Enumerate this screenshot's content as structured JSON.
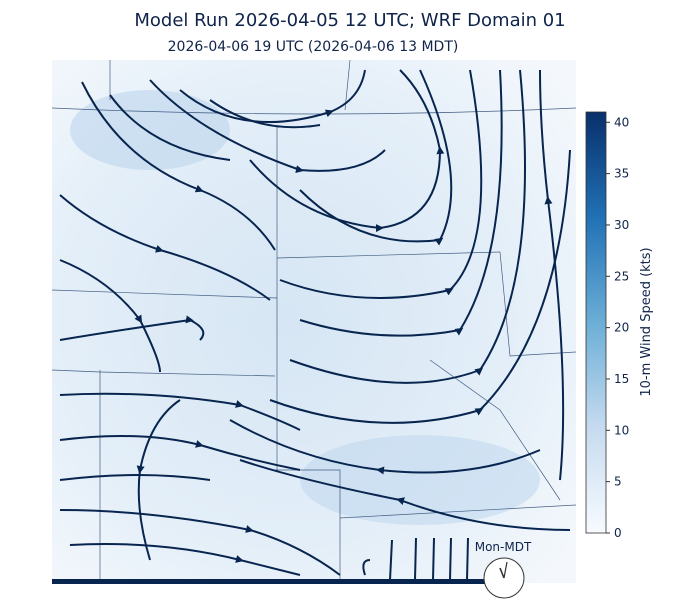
{
  "title": "Model Run 2026-04-05 12 UTC; WRF Domain 01",
  "subtitle": "2026-04-06 19 UTC  (2026-04-06 13 MDT)",
  "colorbar": {
    "label": "10-m Wind Speed (kts)",
    "lim": [
      0,
      41
    ],
    "ticks": [
      0,
      5,
      10,
      15,
      20,
      25,
      30,
      35,
      40
    ]
  },
  "clock_label": "Mon-MDT"
}
